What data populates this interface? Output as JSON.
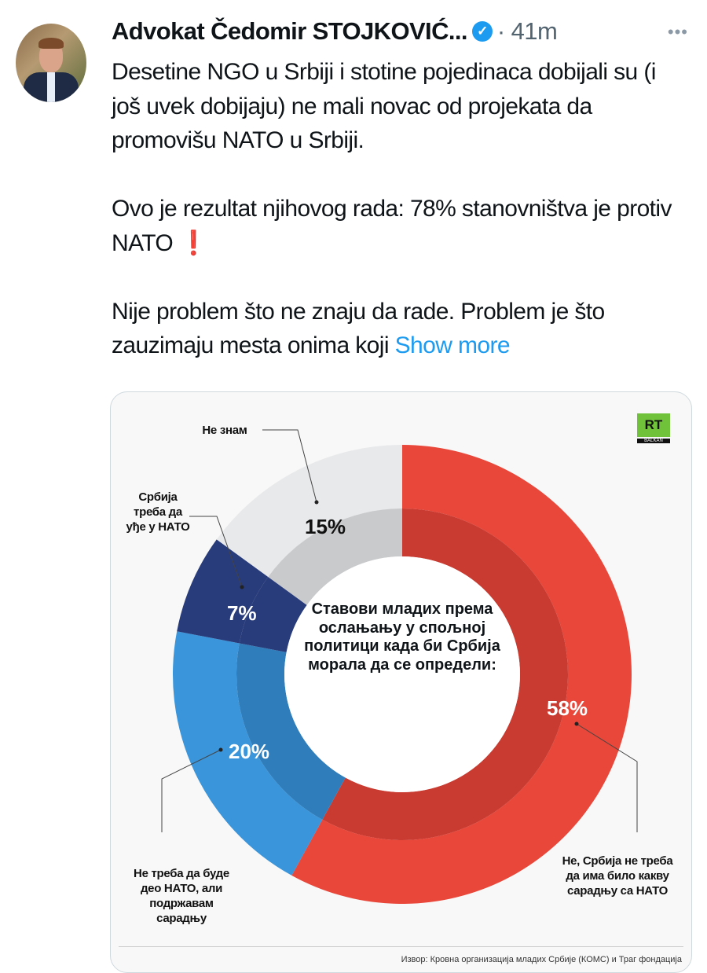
{
  "tweet": {
    "author": "Advokat Čedomir STOJKOVIĆ...",
    "verified_icon": "check",
    "time": "41m",
    "more_icon": "•••",
    "paragraphs": [
      "Desetine NGO u Srbiji i stotine pojedinaca dobijali su (i još uvek dobijaju) ne mali novac od projekata da promovišu NATO u Srbiji.",
      "Ovo je rezultat njihovog rada: 78% stanovništva je protiv NATO",
      "Nije problem što ne znaju da rade. Problem je što zauzimaju mesta onima koji"
    ],
    "exclamation": "❗",
    "show_more": "Show more"
  },
  "chart_data": {
    "type": "pie",
    "title": "Ставови младих према ослањању у спољној политици када би Србија морала да се определи:",
    "slices": [
      {
        "label": "Не, Србија не треба да има било какву сарадњу са НАТО",
        "value": 58,
        "display": "58%",
        "color": "#e8473a",
        "inner": "#c93a30"
      },
      {
        "label": "Не треба да буде део НАТО, али подржавам сарадњу",
        "value": 20,
        "display": "20%",
        "color": "#3a95da",
        "inner": "#2f7dbb"
      },
      {
        "label": "Србија треба да уђе у НАТО",
        "value": 7,
        "display": "7%",
        "color": "#283b7a",
        "inner": "#283b7a"
      },
      {
        "label": "Не знам",
        "value": 15,
        "display": "15%",
        "color": "#e8e9eb",
        "inner": "#c9cacc"
      }
    ],
    "source": "Извор: Кровна организација младих Србије (КОМС) и Траг фондација",
    "logo": {
      "text": "RT",
      "sub": "BALKAN"
    }
  }
}
